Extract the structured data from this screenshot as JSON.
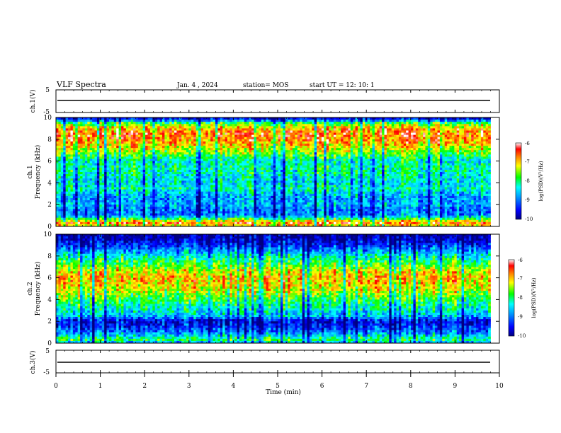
{
  "header": {
    "title": "VLF Spectra",
    "date": "Jan.  4  , 2024",
    "station": "station= MOS",
    "start": "start  UT  =    12: 10: 1"
  },
  "chart_data": [
    {
      "type": "line",
      "panel": "ch1-waveform",
      "ylabel": "ch.1(V)",
      "yticks": [
        "5",
        "-5"
      ],
      "ylim": [
        -5,
        5
      ],
      "xlim": [
        0,
        10
      ],
      "series_value": 0
    },
    {
      "type": "heatmap",
      "panel": "ch1-spectrogram",
      "ylabel_top": "ch.1",
      "ylabel": "Frequency (kHz)",
      "yticks": [
        "0",
        "2",
        "4",
        "6",
        "8",
        "10"
      ],
      "ylim": [
        0,
        10
      ],
      "xlim": [
        0,
        10
      ],
      "colorbar": {
        "label": "log(PSD)(V²/Hz)",
        "ticks": [
          "-6",
          "-7",
          "-8",
          "-9",
          "-10"
        ],
        "range": [
          -10,
          -6
        ]
      },
      "intensity_profile": [
        [
          0.0,
          -7.3
        ],
        [
          0.3,
          -6.6
        ],
        [
          0.6,
          -7.5
        ],
        [
          1.0,
          -8.9
        ],
        [
          1.5,
          -9.0
        ],
        [
          2.0,
          -8.7
        ],
        [
          2.5,
          -8.8
        ],
        [
          3.0,
          -8.6
        ],
        [
          3.5,
          -8.2
        ],
        [
          4.0,
          -8.5
        ],
        [
          4.5,
          -8.3
        ],
        [
          5.0,
          -8.2
        ],
        [
          5.5,
          -8.1
        ],
        [
          6.0,
          -8.3
        ],
        [
          6.5,
          -7.8
        ],
        [
          7.0,
          -7.4
        ],
        [
          7.5,
          -7.0
        ],
        [
          8.0,
          -6.7
        ],
        [
          8.5,
          -6.6
        ],
        [
          9.0,
          -6.9
        ],
        [
          9.5,
          -7.8
        ],
        [
          9.8,
          -9.2
        ],
        [
          10.0,
          -9.8
        ]
      ],
      "max_time_min": 9.8
    },
    {
      "type": "heatmap",
      "panel": "ch2-spectrogram",
      "ylabel_top": "ch.2",
      "ylabel": "Frequency (kHz)",
      "yticks": [
        "0",
        "2",
        "4",
        "6",
        "8",
        "10"
      ],
      "ylim": [
        0,
        10
      ],
      "xlim": [
        0,
        10
      ],
      "colorbar": {
        "label": "log(PSD)(V²/Hz)",
        "ticks": [
          "-6",
          "-7",
          "-8",
          "-9",
          "-10"
        ],
        "range": [
          -10,
          -6
        ]
      },
      "intensity_profile": [
        [
          0.0,
          -8.8
        ],
        [
          0.3,
          -7.9
        ],
        [
          0.6,
          -8.3
        ],
        [
          1.0,
          -8.9
        ],
        [
          1.5,
          -9.3
        ],
        [
          2.0,
          -9.6
        ],
        [
          2.5,
          -8.6
        ],
        [
          3.0,
          -8.3
        ],
        [
          3.5,
          -8.1
        ],
        [
          4.0,
          -7.8
        ],
        [
          4.5,
          -7.5
        ],
        [
          5.0,
          -7.2
        ],
        [
          5.5,
          -7.0
        ],
        [
          6.0,
          -6.9
        ],
        [
          6.5,
          -7.1
        ],
        [
          7.0,
          -7.5
        ],
        [
          7.5,
          -7.9
        ],
        [
          8.0,
          -8.3
        ],
        [
          8.5,
          -8.8
        ],
        [
          9.0,
          -9.3
        ],
        [
          9.5,
          -9.7
        ],
        [
          10.0,
          -9.9
        ]
      ],
      "max_time_min": 9.8
    },
    {
      "type": "line",
      "panel": "ch3-waveform",
      "ylabel": "ch.3(V)",
      "yticks": [
        "5",
        "-5"
      ],
      "ylim": [
        -5,
        5
      ],
      "xlim": [
        0,
        10
      ],
      "series_value": 0
    }
  ],
  "xaxis": {
    "label": "Time (min)",
    "ticks": [
      "0",
      "1",
      "2",
      "3",
      "4",
      "5",
      "6",
      "7",
      "8",
      "9",
      "10"
    ]
  }
}
